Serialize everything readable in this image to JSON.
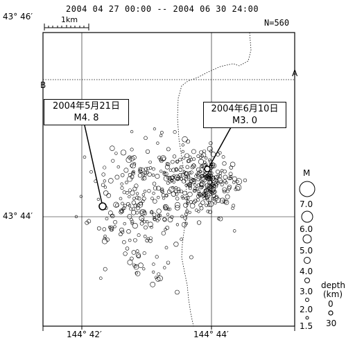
{
  "header": {
    "date_range": "2004 04 27 00:00  --  2004 06 30 24:00",
    "count": "N=560",
    "scale_label": "1km"
  },
  "axes": {
    "lat_labels": [
      "43° 46′",
      "43° 44′"
    ],
    "lon_labels": [
      "144° 42′",
      "144° 44′"
    ]
  },
  "section_labels": {
    "a": "A",
    "b": "B"
  },
  "callouts": [
    {
      "date": "2004年5月21日",
      "mag": "M4. 8"
    },
    {
      "date": "2004年6月10日",
      "mag": "M3. 0"
    }
  ],
  "legend": {
    "magnitude_title": "M",
    "magnitudes": [
      "7.0",
      "6.0",
      "5.0",
      "4.0",
      "3.0",
      "2.0",
      "1.5"
    ],
    "depth_title": "depth",
    "depth_unit": "(km)",
    "depths": [
      "0",
      "30"
    ]
  },
  "colors": {
    "ink": "#000000",
    "background": "#ffffff"
  }
}
